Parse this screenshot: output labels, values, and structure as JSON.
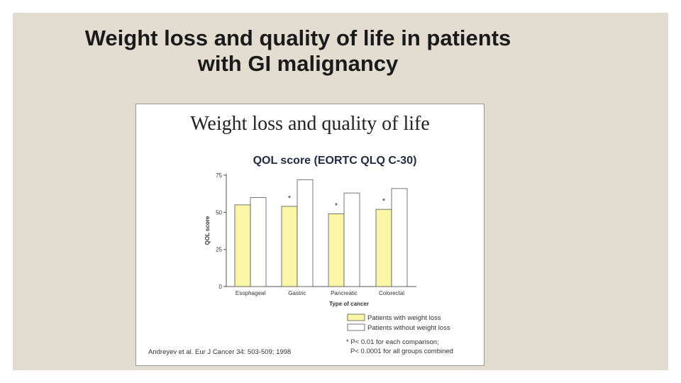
{
  "slide": {
    "title_line1": "Weight loss and quality of life in patients",
    "title_line2": "with GI malignancy"
  },
  "figure": {
    "heading": "Weight loss and quality of life",
    "citation": "Andreyev et al. Eur J Cancer 34: 503-509; 1998"
  },
  "chart_data": {
    "type": "bar",
    "title": "QOL score (EORTC QLQ C-30)",
    "xlabel": "Type of cancer",
    "ylabel": "QOL score",
    "ylim": [
      0,
      75
    ],
    "yticks": [
      "0",
      "25",
      "50",
      "75"
    ],
    "categories": [
      "Esophageal",
      "Gastric",
      "Pancreatic",
      "Colorectal"
    ],
    "series": [
      {
        "name": "Patients with weight loss",
        "values": [
          55,
          54,
          49,
          52
        ],
        "color": "#faf6a6"
      },
      {
        "name": "Patients without weight loss",
        "values": [
          60,
          72,
          63,
          66
        ],
        "color": "#ffffff"
      }
    ],
    "significance_markers": [
      "",
      "*",
      "*",
      "*"
    ],
    "legend_position": "bottom-right",
    "footnotes": [
      "* P< 0.01 for each comparison;",
      "P< 0.0001 for all groups combined"
    ]
  }
}
